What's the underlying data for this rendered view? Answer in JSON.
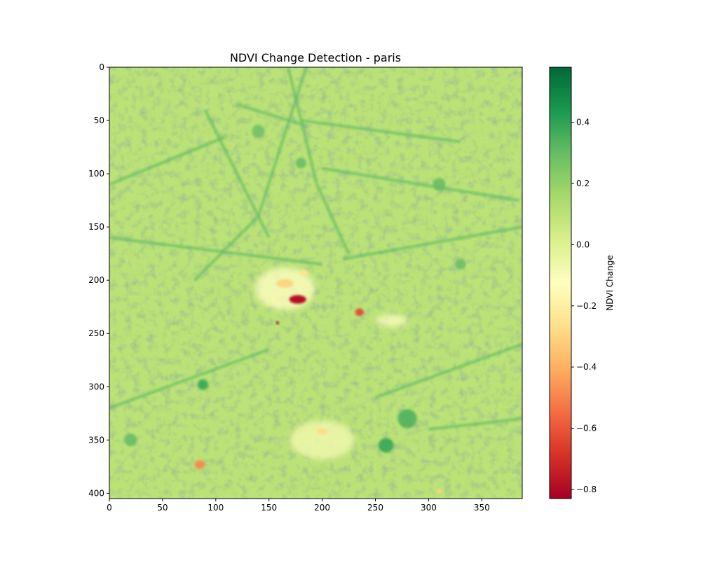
{
  "chart_data": {
    "type": "heatmap",
    "title": "NDVI Change Detection - paris",
    "xlabel": "",
    "ylabel": "",
    "x_range": [
      0,
      388
    ],
    "y_range": [
      0,
      405
    ],
    "y_inverted": true,
    "x_ticks": [
      0,
      50,
      100,
      150,
      200,
      250,
      300,
      350
    ],
    "y_ticks": [
      0,
      50,
      100,
      150,
      200,
      250,
      300,
      350,
      400
    ],
    "colorbar": {
      "label": "NDVI Change",
      "colormap": "RdYlGn",
      "range": [
        -0.83,
        0.58
      ],
      "ticks": [
        -0.8,
        -0.6,
        -0.4,
        -0.2,
        0.0,
        0.2,
        0.4
      ],
      "tick_labels": [
        "−0.8",
        "−0.6",
        "−0.4",
        "−0.2",
        "0.0",
        "0.2",
        "0.4"
      ],
      "stops": [
        "#a50026",
        "#d73027",
        "#f46d43",
        "#fdae61",
        "#fee08b",
        "#ffffbf",
        "#d9ef8b",
        "#a6d96a",
        "#66bd63",
        "#1a9850",
        "#006837"
      ]
    },
    "background_value": 0.1,
    "features": {
      "dark_green_lines": [
        {
          "from": [
            0,
            110
          ],
          "to": [
            110,
            65
          ]
        },
        {
          "from": [
            120,
            35
          ],
          "to": [
            185,
            55
          ]
        },
        {
          "from": [
            168,
            0
          ],
          "to": [
            195,
            110
          ]
        },
        {
          "from": [
            195,
            110
          ],
          "to": [
            225,
            175
          ]
        },
        {
          "from": [
            185,
            0
          ],
          "to": [
            140,
            140
          ]
        },
        {
          "from": [
            140,
            140
          ],
          "to": [
            80,
            200
          ]
        },
        {
          "from": [
            180,
            50
          ],
          "to": [
            330,
            70
          ]
        },
        {
          "from": [
            200,
            95
          ],
          "to": [
            385,
            125
          ]
        },
        {
          "from": [
            0,
            160
          ],
          "to": [
            200,
            185
          ]
        },
        {
          "from": [
            220,
            180
          ],
          "to": [
            388,
            150
          ]
        },
        {
          "from": [
            0,
            320
          ],
          "to": [
            150,
            265
          ]
        },
        {
          "from": [
            250,
            310
          ],
          "to": [
            388,
            260
          ]
        },
        {
          "from": [
            300,
            340
          ],
          "to": [
            388,
            330
          ]
        },
        {
          "from": [
            90,
            40
          ],
          "to": [
            150,
            160
          ]
        }
      ],
      "green_blobs": [
        {
          "x": 88,
          "y": 298,
          "r": 5,
          "value": 0.4
        },
        {
          "x": 280,
          "y": 330,
          "r": 9,
          "value": 0.35
        },
        {
          "x": 260,
          "y": 355,
          "r": 7,
          "value": 0.4
        },
        {
          "x": 310,
          "y": 110,
          "r": 6,
          "value": 0.3
        },
        {
          "x": 140,
          "y": 60,
          "r": 6,
          "value": 0.28
        },
        {
          "x": 330,
          "y": 185,
          "r": 5,
          "value": 0.3
        },
        {
          "x": 20,
          "y": 350,
          "r": 6,
          "value": 0.3
        },
        {
          "x": 180,
          "y": 90,
          "r": 5,
          "value": 0.3
        }
      ],
      "pale_areas": [
        {
          "x": 165,
          "y": 208,
          "rx": 28,
          "ry": 20,
          "value": -0.12
        },
        {
          "x": 200,
          "y": 350,
          "rx": 30,
          "ry": 18,
          "value": -0.08
        },
        {
          "x": 265,
          "y": 238,
          "rx": 15,
          "ry": 6,
          "value": -0.1
        }
      ],
      "red_spots": [
        {
          "x": 177,
          "y": 218,
          "rx": 8,
          "ry": 4,
          "value": -0.78
        },
        {
          "x": 235,
          "y": 230,
          "rx": 4,
          "ry": 3.5,
          "value": -0.62
        },
        {
          "x": 158,
          "y": 240,
          "rx": 1.5,
          "ry": 1.5,
          "value": -0.8
        },
        {
          "x": 85,
          "y": 373,
          "rx": 5,
          "ry": 4,
          "value": -0.48
        },
        {
          "x": 165,
          "y": 203,
          "rx": 8,
          "ry": 4,
          "value": -0.3
        },
        {
          "x": 183,
          "y": 193,
          "rx": 4,
          "ry": 3,
          "value": -0.25
        },
        {
          "x": 200,
          "y": 342,
          "rx": 5,
          "ry": 3,
          "value": -0.28
        },
        {
          "x": 310,
          "y": 398,
          "rx": 3,
          "ry": 2,
          "value": -0.3
        }
      ]
    }
  }
}
